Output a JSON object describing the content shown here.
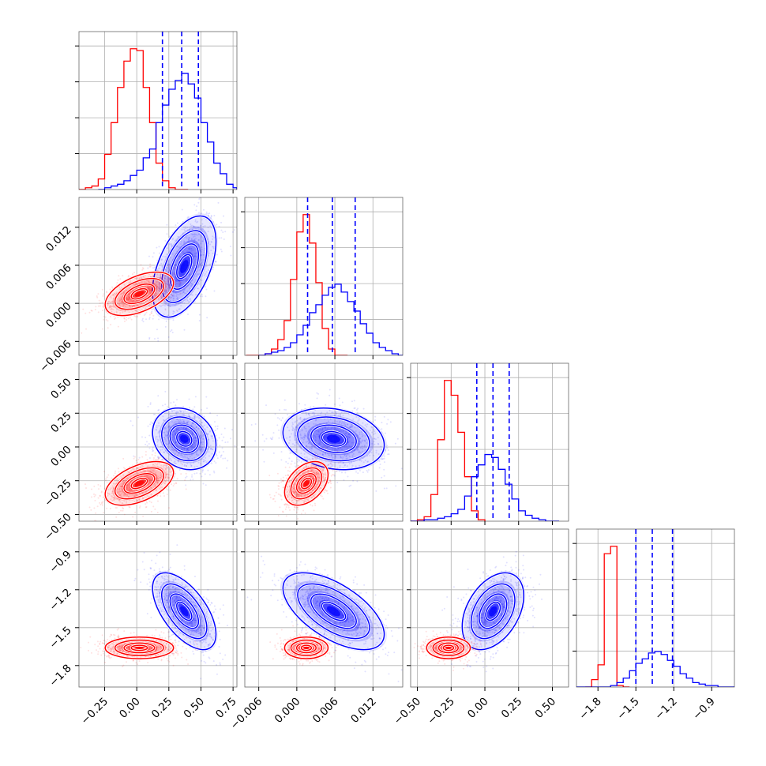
{
  "chart_data": {
    "type": "corner",
    "title": "",
    "grid": true,
    "n_params": 4,
    "colors": {
      "red_sample": "#ff0000",
      "blue_sample": "#0000ff",
      "grid": "#b0b0b0",
      "axes": "#000000"
    },
    "params": [
      {
        "range": [
          -0.45,
          0.78
        ],
        "ticks": [
          -0.25,
          0.0,
          0.25,
          0.5,
          0.75
        ],
        "tick_labels": [
          "−0.25",
          "0.00",
          "0.25",
          "0.50",
          "0.75"
        ]
      },
      {
        "range": [
          -0.0082,
          0.0167
        ],
        "ticks": [
          -0.006,
          0.0,
          0.006,
          0.012
        ],
        "tick_labels": [
          "−0.006",
          "0.000",
          "0.006",
          "0.012"
        ]
      },
      {
        "range": [
          -0.55,
          0.62
        ],
        "ticks": [
          -0.5,
          -0.25,
          0.0,
          0.25,
          0.5
        ],
        "tick_labels": [
          "−0.50",
          "−0.25",
          "0.00",
          "0.25",
          "0.50"
        ]
      },
      {
        "range": [
          -1.97,
          -0.72
        ],
        "ticks": [
          -1.8,
          -1.5,
          -1.2,
          -0.9
        ],
        "tick_labels": [
          "−1.8",
          "−1.5",
          "−1.2",
          "−0.9"
        ]
      }
    ],
    "quantile_lines_blue": [
      [
        0.2,
        0.35,
        0.48
      ],
      [
        0.0017,
        0.0056,
        0.0092
      ],
      [
        -0.06,
        0.06,
        0.18
      ],
      [
        -1.5,
        -1.37,
        -1.21
      ]
    ],
    "histograms": [
      {
        "param": 0,
        "red": {
          "bin_edges": [
            -0.45,
            -0.4,
            -0.35,
            -0.3,
            -0.25,
            -0.2,
            -0.15,
            -0.1,
            -0.05,
            0.0,
            0.05,
            0.1,
            0.15,
            0.2,
            0.25,
            0.3,
            0.35,
            0.4
          ],
          "counts": [
            0,
            1,
            2,
            6,
            20,
            38,
            58,
            73,
            80,
            79,
            58,
            38,
            15,
            5,
            1,
            0,
            0
          ]
        },
        "blue": {
          "bin_edges": [
            -0.3,
            -0.25,
            -0.2,
            -0.15,
            -0.1,
            -0.05,
            0.0,
            0.05,
            0.1,
            0.15,
            0.2,
            0.25,
            0.3,
            0.35,
            0.4,
            0.45,
            0.5,
            0.55,
            0.6,
            0.65,
            0.7,
            0.75,
            0.78
          ],
          "counts": [
            0,
            1,
            2,
            3,
            5,
            8,
            11,
            18,
            23,
            38,
            48,
            57,
            62,
            66,
            60,
            52,
            38,
            27,
            15,
            9,
            3,
            1
          ]
        }
      },
      {
        "param": 1,
        "red": {
          "bin_edges": [
            -0.008,
            -0.007,
            -0.006,
            -0.005,
            -0.004,
            -0.003,
            -0.002,
            -0.001,
            0.0,
            0.001,
            0.002,
            0.003,
            0.004,
            0.005,
            0.006,
            0.007,
            0.008
          ],
          "counts": [
            0,
            0,
            0,
            1,
            4,
            10,
            22,
            48,
            78,
            89,
            71,
            46,
            17,
            4,
            0,
            0
          ]
        },
        "blue": {
          "bin_edges": [
            -0.006,
            -0.005,
            -0.004,
            -0.003,
            -0.002,
            -0.001,
            0.0,
            0.001,
            0.002,
            0.003,
            0.004,
            0.005,
            0.006,
            0.007,
            0.008,
            0.009,
            0.01,
            0.011,
            0.012,
            0.013,
            0.014,
            0.015,
            0.016,
            0.017
          ],
          "counts": [
            0,
            1,
            2,
            3,
            5,
            8,
            13,
            19,
            27,
            32,
            38,
            43,
            45,
            40,
            34,
            28,
            20,
            14,
            8,
            5,
            3,
            1,
            0
          ]
        }
      },
      {
        "param": 2,
        "red": {
          "bin_edges": [
            -0.55,
            -0.5,
            -0.45,
            -0.4,
            -0.35,
            -0.3,
            -0.25,
            -0.2,
            -0.15,
            -0.1,
            -0.05,
            0.0
          ],
          "counts": [
            0,
            1,
            3,
            18,
            55,
            95,
            85,
            60,
            30,
            7,
            1
          ]
        },
        "blue": {
          "bin_edges": [
            -0.55,
            -0.5,
            -0.45,
            -0.4,
            -0.35,
            -0.3,
            -0.25,
            -0.2,
            -0.15,
            -0.1,
            -0.05,
            0.0,
            0.05,
            0.1,
            0.15,
            0.2,
            0.25,
            0.3,
            0.35,
            0.4,
            0.45,
            0.5,
            0.55
          ],
          "counts": [
            0,
            0,
            1,
            1,
            2,
            3,
            5,
            8,
            17,
            30,
            38,
            45,
            43,
            35,
            25,
            15,
            7,
            4,
            2,
            1,
            0,
            0
          ]
        }
      },
      {
        "param": 3,
        "red": {
          "bin_edges": [
            -1.9,
            -1.85,
            -1.8,
            -1.75,
            -1.7,
            -1.65,
            -1.6,
            -1.55
          ],
          "counts": [
            0,
            5,
            15,
            90,
            95,
            1,
            0
          ]
        },
        "blue": {
          "bin_edges": [
            -1.97,
            -1.9,
            -1.85,
            -1.8,
            -1.75,
            -1.7,
            -1.65,
            -1.6,
            -1.55,
            -1.5,
            -1.45,
            -1.4,
            -1.35,
            -1.3,
            -1.25,
            -1.2,
            -1.15,
            -1.1,
            -1.05,
            -1.0,
            -0.95,
            -0.9,
            -0.85,
            -0.8,
            -0.72
          ],
          "counts": [
            0,
            0,
            0,
            0,
            0,
            1,
            3,
            6,
            11,
            16,
            19,
            23,
            24,
            22,
            18,
            14,
            9,
            6,
            3,
            2,
            1,
            1,
            0,
            0
          ]
        }
      }
    ],
    "scatter_2d": [
      {
        "x_param": 0,
        "y_param": 1,
        "red": {
          "mean": [
            0.02,
            0.0015
          ],
          "sd": [
            0.14,
            0.0018
          ],
          "corr": 0.5
        },
        "blue": {
          "mean": [
            0.37,
            0.0058
          ],
          "sd": [
            0.13,
            0.0042
          ],
          "corr": 0.5
        }
      },
      {
        "x_param": 0,
        "y_param": 2,
        "red": {
          "mean": [
            0.02,
            -0.27
          ],
          "sd": [
            0.14,
            0.085
          ],
          "corr": 0.5
        },
        "blue": {
          "mean": [
            0.37,
            0.06
          ],
          "sd": [
            0.13,
            0.12
          ],
          "corr": -0.2
        }
      },
      {
        "x_param": 1,
        "y_param": 2,
        "red": {
          "mean": [
            0.0015,
            -0.27
          ],
          "sd": [
            0.0018,
            0.085
          ],
          "corr": 0.4
        },
        "blue": {
          "mean": [
            0.0058,
            0.06
          ],
          "sd": [
            0.0042,
            0.12
          ],
          "corr": -0.2
        }
      },
      {
        "x_param": 0,
        "y_param": 3,
        "red": {
          "mean": [
            0.02,
            -1.66
          ],
          "sd": [
            0.14,
            0.045
          ],
          "corr": 0.0
        },
        "blue": {
          "mean": [
            0.37,
            -1.37
          ],
          "sd": [
            0.13,
            0.16
          ],
          "corr": -0.6
        }
      },
      {
        "x_param": 1,
        "y_param": 3,
        "red": {
          "mean": [
            0.0015,
            -1.66
          ],
          "sd": [
            0.0018,
            0.045
          ],
          "corr": 0.0
        },
        "blue": {
          "mean": [
            0.0058,
            -1.37
          ],
          "sd": [
            0.0042,
            0.16
          ],
          "corr": -0.6
        }
      },
      {
        "x_param": 2,
        "y_param": 3,
        "red": {
          "mean": [
            -0.27,
            -1.66
          ],
          "sd": [
            0.085,
            0.045
          ],
          "corr": 0.0
        },
        "blue": {
          "mean": [
            0.06,
            -1.37
          ],
          "sd": [
            0.12,
            0.16
          ],
          "corr": 0.4
        }
      }
    ]
  }
}
